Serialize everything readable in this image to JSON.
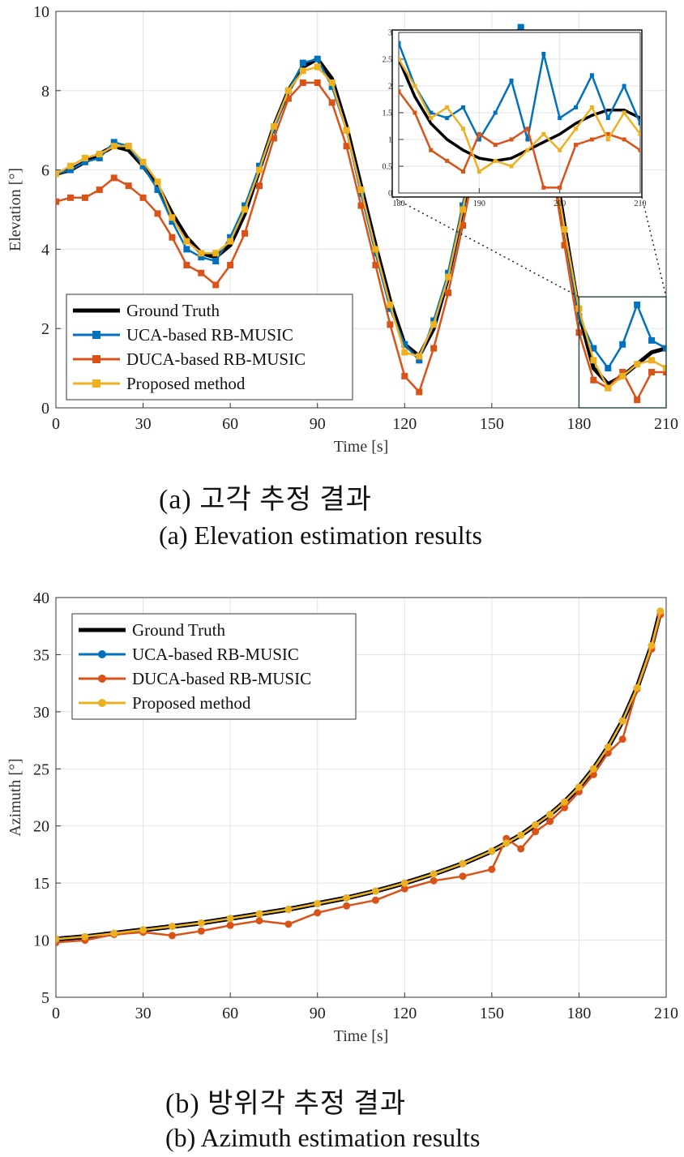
{
  "caption_a_ko": "(a) 고각 추정 결과",
  "caption_a_en": "(a)  Elevation estimation results",
  "caption_b_ko": "(b) 방위각 추정 결과",
  "caption_b_en": "(b)  Azimuth estimation results",
  "colors": {
    "ground_truth": "#000000",
    "uca": "#0072BD",
    "duca": "#D95319",
    "proposed": "#EDB120",
    "grid": "#e3e3e3",
    "inset_box": "#2f4f4f"
  },
  "chart_data": [
    {
      "type": "line",
      "title": "",
      "xlabel": "Time [s]",
      "ylabel": "Elevation [°]",
      "xlim": [
        0,
        210
      ],
      "ylim": [
        0,
        10
      ],
      "xticks": [
        0,
        30,
        60,
        90,
        120,
        150,
        180,
        210
      ],
      "yticks": [
        0,
        2,
        4,
        6,
        8,
        10
      ],
      "grid": true,
      "legend_position": "bottom-left",
      "marker": "square",
      "x": [
        0,
        5,
        10,
        15,
        20,
        25,
        30,
        35,
        40,
        45,
        50,
        55,
        60,
        65,
        70,
        75,
        80,
        85,
        90,
        95,
        100,
        105,
        110,
        115,
        120,
        125,
        130,
        135,
        140,
        145,
        150,
        155,
        160,
        165,
        170,
        175,
        180,
        185,
        190,
        195,
        200,
        205,
        210
      ],
      "series": [
        {
          "name": "Ground Truth",
          "values": [
            5.9,
            6.0,
            6.2,
            6.4,
            6.6,
            6.5,
            6.1,
            5.6,
            4.9,
            4.3,
            3.9,
            3.8,
            4.1,
            4.9,
            6.0,
            7.1,
            8.0,
            8.6,
            8.8,
            8.3,
            7.1,
            5.6,
            4.1,
            2.7,
            1.6,
            1.3,
            2.0,
            3.3,
            5.0,
            6.8,
            8.4,
            9.3,
            9.5,
            8.7,
            6.9,
            4.6,
            2.4,
            1.0,
            0.6,
            0.8,
            1.1,
            1.4,
            1.5
          ]
        },
        {
          "name": "UCA-based RB-MUSIC",
          "values": [
            5.9,
            6.0,
            6.2,
            6.3,
            6.7,
            6.6,
            6.1,
            5.5,
            4.7,
            4.0,
            3.8,
            3.7,
            4.3,
            5.1,
            6.1,
            7.0,
            8.0,
            8.7,
            8.8,
            8.1,
            7.0,
            5.4,
            3.9,
            2.5,
            1.6,
            1.2,
            2.2,
            3.4,
            5.1,
            6.9,
            8.5,
            9.3,
            9.6,
            8.7,
            6.8,
            4.5,
            2.3,
            1.5,
            1.0,
            1.6,
            2.6,
            1.7,
            1.5
          ]
        },
        {
          "name": "DUCA-based RB-MUSIC",
          "values": [
            5.2,
            5.3,
            5.3,
            5.5,
            5.8,
            5.6,
            5.3,
            4.9,
            4.3,
            3.6,
            3.4,
            3.1,
            3.6,
            4.4,
            5.6,
            6.8,
            7.8,
            8.2,
            8.2,
            7.7,
            6.6,
            5.1,
            3.6,
            2.1,
            0.8,
            0.4,
            1.5,
            2.9,
            4.6,
            6.4,
            8.1,
            8.9,
            9.1,
            8.2,
            6.4,
            4.1,
            1.9,
            0.7,
            0.5,
            0.9,
            0.2,
            0.9,
            0.9
          ]
        },
        {
          "name": "Proposed method",
          "values": [
            5.9,
            6.1,
            6.3,
            6.4,
            6.6,
            6.6,
            6.2,
            5.7,
            4.8,
            4.2,
            3.9,
            3.9,
            4.2,
            5.0,
            6.0,
            7.1,
            8.0,
            8.5,
            8.6,
            8.2,
            7.0,
            5.5,
            4.0,
            2.6,
            1.4,
            1.3,
            2.1,
            3.3,
            5.0,
            6.8,
            8.4,
            9.2,
            9.4,
            8.6,
            6.8,
            4.5,
            2.5,
            1.2,
            0.5,
            0.8,
            1.1,
            1.2,
            1.0
          ]
        }
      ],
      "inset": {
        "xlim": [
          180,
          210
        ],
        "ylim": [
          0,
          3
        ],
        "xticks": [
          180,
          190,
          200,
          210
        ],
        "yticks": [
          0,
          0.5,
          1,
          1.5,
          2,
          2.5,
          3
        ],
        "x": [
          180,
          182,
          184,
          186,
          188,
          190,
          192,
          194,
          196,
          198,
          200,
          202,
          204,
          206,
          208,
          210
        ],
        "series": [
          {
            "name": "Ground Truth",
            "values": [
              2.5,
              1.8,
              1.3,
              1.0,
              0.8,
              0.65,
              0.6,
              0.65,
              0.8,
              0.95,
              1.1,
              1.3,
              1.45,
              1.55,
              1.55,
              1.4
            ]
          },
          {
            "name": "UCA-based RB-MUSIC",
            "values": [
              2.8,
              2.0,
              1.5,
              1.4,
              1.6,
              1.0,
              1.5,
              2.1,
              1.0,
              2.6,
              1.4,
              1.6,
              2.2,
              1.4,
              2.0,
              1.3
            ]
          },
          {
            "name": "DUCA-based RB-MUSIC",
            "values": [
              1.9,
              1.5,
              0.8,
              0.6,
              0.4,
              1.1,
              0.9,
              1.0,
              1.2,
              0.1,
              0.1,
              0.9,
              1.0,
              1.1,
              1.0,
              0.8
            ]
          },
          {
            "name": "Proposed method",
            "values": [
              2.5,
              2.0,
              1.4,
              1.6,
              1.2,
              0.4,
              0.6,
              0.5,
              0.8,
              1.1,
              0.8,
              1.2,
              1.6,
              1.0,
              1.5,
              1.1
            ]
          }
        ]
      }
    },
    {
      "type": "line",
      "title": "",
      "xlabel": "Time [s]",
      "ylabel": "Azimuth [°]",
      "xlim": [
        0,
        210
      ],
      "ylim": [
        5,
        40
      ],
      "xticks": [
        0,
        30,
        60,
        90,
        120,
        150,
        180,
        210
      ],
      "yticks": [
        5,
        10,
        15,
        20,
        25,
        30,
        35,
        40
      ],
      "grid": true,
      "legend_position": "top-left",
      "marker": "circle",
      "x": [
        0,
        10,
        20,
        30,
        40,
        50,
        60,
        70,
        80,
        90,
        100,
        110,
        120,
        130,
        140,
        150,
        155,
        160,
        165,
        170,
        175,
        180,
        185,
        190,
        195,
        200,
        205,
        208
      ],
      "series": [
        {
          "name": "Ground Truth",
          "values": [
            10.1,
            10.3,
            10.6,
            10.9,
            11.2,
            11.5,
            11.9,
            12.3,
            12.7,
            13.2,
            13.7,
            14.3,
            15.0,
            15.8,
            16.7,
            17.8,
            18.5,
            19.2,
            20.1,
            21.0,
            22.1,
            23.4,
            25.0,
            26.9,
            29.2,
            32.1,
            35.8,
            38.8
          ]
        },
        {
          "name": "UCA-based RB-MUSIC",
          "values": [
            10.1,
            10.3,
            10.6,
            10.9,
            11.2,
            11.5,
            11.9,
            12.3,
            12.7,
            13.2,
            13.7,
            14.3,
            15.0,
            15.8,
            16.7,
            17.8,
            18.5,
            19.2,
            20.1,
            21.0,
            22.1,
            23.4,
            25.0,
            26.9,
            29.2,
            32.1,
            35.8,
            38.8
          ]
        },
        {
          "name": "DUCA-based RB-MUSIC",
          "values": [
            9.8,
            10.0,
            10.5,
            10.7,
            10.4,
            10.8,
            11.3,
            11.7,
            11.4,
            12.4,
            13.0,
            13.5,
            14.5,
            15.2,
            15.6,
            16.2,
            18.9,
            18.0,
            19.5,
            20.4,
            21.6,
            23.0,
            24.5,
            26.4,
            27.6,
            32.0,
            35.5,
            38.5
          ]
        },
        {
          "name": "Proposed method",
          "values": [
            10.1,
            10.3,
            10.6,
            10.9,
            11.2,
            11.5,
            11.9,
            12.3,
            12.7,
            13.2,
            13.7,
            14.3,
            15.0,
            15.8,
            16.7,
            17.8,
            18.5,
            19.2,
            20.1,
            21.0,
            22.1,
            23.4,
            25.0,
            26.9,
            29.2,
            32.1,
            35.8,
            38.8
          ]
        }
      ]
    }
  ]
}
